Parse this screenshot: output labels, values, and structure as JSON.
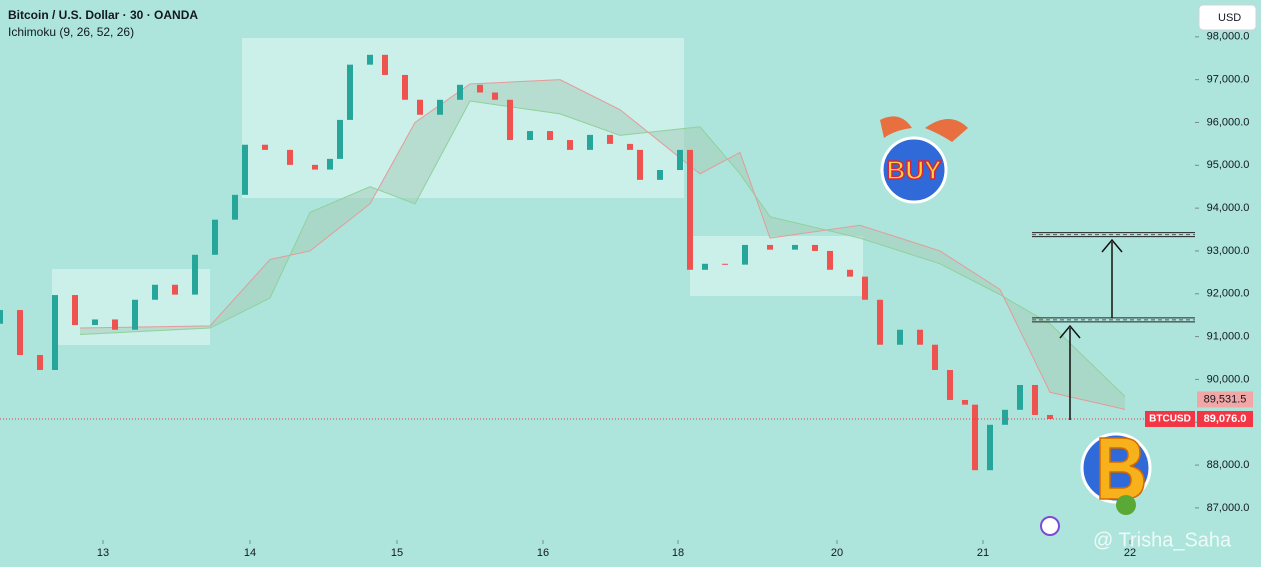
{
  "chart_data": {
    "type": "candlestick",
    "title": "Bitcoin / U.S. Dollar · 30 · OANDA",
    "subtitle": "Ichimoku (9, 26, 52, 26)",
    "currency_button": "USD",
    "up_color": "#26a69a",
    "down_color": "#ef5350",
    "x": [
      0,
      4,
      8,
      11,
      15,
      19,
      23,
      27,
      31,
      35,
      39,
      43,
      47,
      49,
      53,
      58,
      63,
      66,
      68,
      70,
      74,
      77,
      81,
      84,
      88,
      92,
      96,
      99,
      102,
      106,
      110,
      114,
      118,
      122,
      126,
      128,
      132,
      136,
      138,
      141,
      145,
      149,
      154,
      159,
      163,
      166,
      170,
      173,
      176,
      180,
      184,
      187,
      190,
      193,
      195,
      198,
      201,
      204,
      207,
      210
    ],
    "open": [
      91300,
      91620,
      90570,
      90220,
      91970,
      91270,
      91400,
      91160,
      91860,
      92210,
      91980,
      92910,
      93730,
      94310,
      95480,
      95360,
      95010,
      94900,
      95150,
      96060,
      97350,
      97580,
      97110,
      96530,
      96180,
      96530,
      96880,
      96700,
      96530,
      95590,
      95800,
      95590,
      95360,
      95710,
      95500,
      95360,
      94660,
      94890,
      95360,
      92560,
      92700,
      92680,
      93140,
      93030,
      93140,
      93000,
      92560,
      92400,
      91860,
      90810,
      91160,
      90810,
      90220,
      89520,
      89410,
      87880,
      88940,
      89290,
      89870,
      89170
    ],
    "close": [
      91620,
      90570,
      90220,
      91970,
      91270,
      91400,
      91160,
      91860,
      92210,
      91980,
      92910,
      93730,
      94310,
      95480,
      95360,
      95010,
      94900,
      95150,
      96060,
      97350,
      97580,
      97110,
      96530,
      96180,
      96530,
      96880,
      96700,
      96530,
      95590,
      95800,
      95590,
      95360,
      95710,
      95500,
      95360,
      94660,
      94890,
      95360,
      92560,
      92700,
      92680,
      93140,
      93030,
      93140,
      93000,
      92560,
      92400,
      91860,
      90810,
      91160,
      90810,
      90220,
      89520,
      89410,
      87880,
      88940,
      89290,
      89870,
      89170,
      89076
    ],
    "cloud": {
      "x": [
        16,
        42,
        54,
        62,
        74,
        83,
        94,
        112,
        124,
        140,
        148,
        154,
        172,
        188,
        200,
        210,
        225
      ],
      "span_a": [
        91050,
        91200,
        91900,
        93900,
        94500,
        94100,
        96500,
        96200,
        95700,
        95900,
        94800,
        93800,
        93300,
        92700,
        91980,
        91300,
        89600
      ],
      "span_b": [
        91200,
        91250,
        92800,
        93000,
        94100,
        96000,
        96900,
        97000,
        96300,
        94800,
        95300,
        93300,
        93600,
        93000,
        92100,
        89700,
        89300
      ]
    },
    "levels": [
      93380,
      91390
    ],
    "xlim": [
      0,
      239
    ],
    "xticks": [
      {
        "value": 20.6,
        "label": "13"
      },
      {
        "value": 50,
        "label": "14"
      },
      {
        "value": 79.4,
        "label": "15"
      },
      {
        "value": 108.6,
        "label": "16"
      },
      {
        "value": 135.6,
        "label": "18"
      },
      {
        "value": 167.4,
        "label": "20"
      },
      {
        "value": 196.6,
        "label": "21"
      },
      {
        "value": 226,
        "label": "22"
      }
    ],
    "ylim": [
      86250,
      98860
    ],
    "yticks": [
      {
        "value": 87000,
        "label": "87,000.0"
      },
      {
        "value": 88000,
        "label": "88,000.0"
      },
      {
        "value": 89000,
        "label": "89,000.0"
      },
      {
        "value": 90000,
        "label": "90,000.0"
      },
      {
        "value": 91000,
        "label": "91,000.0"
      },
      {
        "value": 92000,
        "label": "92,000.0"
      },
      {
        "value": 93000,
        "label": "93,000.0"
      },
      {
        "value": 94000,
        "label": "94,000.0"
      },
      {
        "value": 95000,
        "label": "95,000.0"
      },
      {
        "value": 96000,
        "label": "96,000.0"
      },
      {
        "value": 97000,
        "label": "97,000.0"
      },
      {
        "value": 98000,
        "label": "98,000.0"
      }
    ],
    "price_labels": [
      {
        "value": 89531.5,
        "label": "89,531.5"
      },
      {
        "value": 89076,
        "label": "89,076.0"
      }
    ],
    "symbol_label": "BTCUSD",
    "buy_badge": "BUY",
    "watermark": "@ Trisha_Saha"
  }
}
